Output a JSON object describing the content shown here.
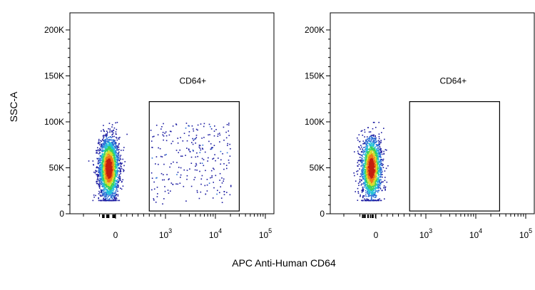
{
  "figure": {
    "ylabel": "SSC-A",
    "xlabel": "APC Anti-Human CD64"
  },
  "chart_data": [
    {
      "type": "scatter",
      "plot_style": "flow-cytometry pseudocolor density dot plot",
      "ylabel": "SSC-A",
      "xlabel": "APC Anti-Human CD64",
      "yscale": "linear",
      "xscale": "biexponential",
      "ylim": [
        0,
        210000
      ],
      "y_ticks": [
        {
          "value": 0,
          "label": "0"
        },
        {
          "value": 50000,
          "label": "50K"
        },
        {
          "value": 100000,
          "label": "100K"
        },
        {
          "value": 150000,
          "label": "150K"
        },
        {
          "value": 200000,
          "label": "200K"
        }
      ],
      "x_ticks": [
        {
          "value": 0,
          "label": "0",
          "exp": ""
        },
        {
          "value": 1000,
          "label": "10",
          "exp": "3"
        },
        {
          "value": 10000,
          "label": "10",
          "exp": "4"
        },
        {
          "value": 100000,
          "label": "10",
          "exp": "5"
        }
      ],
      "gate": {
        "label": "CD64+",
        "x_range": [
          600,
          30000
        ],
        "y_range": [
          3000,
          122000
        ]
      },
      "populations": [
        {
          "name": "main",
          "center": [
            -40,
            50000
          ],
          "count": 2600
        },
        {
          "name": "cd64_positive",
          "x_range": [
            600,
            20000
          ],
          "y_range": [
            10000,
            100000
          ],
          "count": 260
        }
      ],
      "density_colors": [
        "#1a1aa0",
        "#2a6fd6",
        "#22c0d8",
        "#3ad15a",
        "#d8dc2c",
        "#f07a18",
        "#c41e10"
      ]
    },
    {
      "type": "scatter",
      "plot_style": "flow-cytometry pseudocolor density dot plot",
      "ylabel": "SSC-A",
      "xlabel": "APC Anti-Human CD64",
      "yscale": "linear",
      "xscale": "biexponential",
      "ylim": [
        0,
        210000
      ],
      "y_ticks": [
        {
          "value": 0,
          "label": "0"
        },
        {
          "value": 50000,
          "label": "50K"
        },
        {
          "value": 100000,
          "label": "100K"
        },
        {
          "value": 150000,
          "label": "150K"
        },
        {
          "value": 200000,
          "label": "200K"
        }
      ],
      "x_ticks": [
        {
          "value": 0,
          "label": "0",
          "exp": ""
        },
        {
          "value": 1000,
          "label": "10",
          "exp": "3"
        },
        {
          "value": 10000,
          "label": "10",
          "exp": "4"
        },
        {
          "value": 100000,
          "label": "10",
          "exp": "5"
        }
      ],
      "gate": {
        "label": "CD64+",
        "x_range": [
          600,
          30000
        ],
        "y_range": [
          3000,
          122000
        ]
      },
      "populations": [
        {
          "name": "main",
          "center": [
            -20,
            50000
          ],
          "count": 1900
        }
      ],
      "density_colors": [
        "#1a1aa0",
        "#2a6fd6",
        "#22c0d8",
        "#3ad15a",
        "#d8dc2c",
        "#f07a18",
        "#c41e10"
      ]
    }
  ]
}
